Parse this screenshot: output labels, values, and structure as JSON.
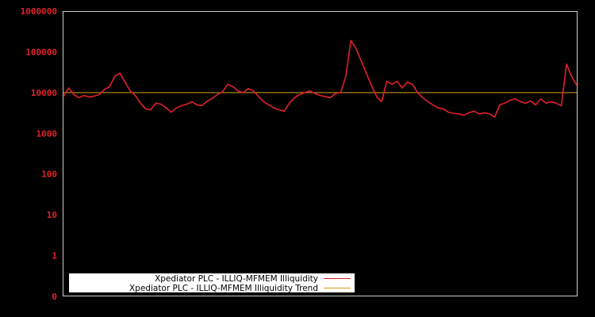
{
  "chart_data": {
    "type": "line",
    "title": "",
    "xlabel": "",
    "ylabel": "",
    "yscale": "log",
    "y_ticks": [
      "1000000",
      "100000",
      "10000",
      "1000",
      "100",
      "10",
      "1",
      "0"
    ],
    "ylim": [
      0,
      1000000
    ],
    "grid": false,
    "legend_position": "bottom-left",
    "series": [
      {
        "name": "Xpediator PLC - ILLIQ-MFMEM Illiquidity",
        "color": "#e0202c",
        "x": [
          0,
          1,
          2,
          3,
          4,
          5,
          6,
          7,
          8,
          9,
          10,
          11,
          12,
          13,
          14,
          15,
          16,
          17,
          18,
          19,
          20,
          21,
          22,
          23,
          24,
          25,
          26,
          27,
          28,
          29,
          30,
          31,
          32,
          33,
          34,
          35,
          36,
          37,
          38,
          39,
          40,
          41,
          42,
          43,
          44,
          45,
          46,
          47,
          48,
          49,
          50,
          51,
          52,
          53,
          54,
          55,
          56,
          57,
          58,
          59,
          60,
          61,
          62,
          63,
          64,
          65,
          66,
          67,
          68,
          69,
          70,
          71,
          72,
          73,
          74,
          75,
          76,
          77,
          78,
          79,
          80,
          81,
          82,
          83,
          84,
          85,
          86,
          87,
          88,
          89,
          90,
          91,
          92,
          93,
          94,
          95,
          96,
          97,
          98,
          99,
          100
        ],
        "values": [
          8000,
          13000,
          9000,
          7500,
          8500,
          7800,
          8200,
          9000,
          12000,
          14000,
          25000,
          30000,
          18000,
          11000,
          8500,
          5500,
          4000,
          3800,
          5500,
          5200,
          4200,
          3300,
          4200,
          4800,
          5200,
          6000,
          5000,
          4800,
          6200,
          7200,
          9000,
          10500,
          16000,
          14000,
          11000,
          10000,
          12500,
          11000,
          8000,
          6000,
          5000,
          4200,
          3800,
          3500,
          5500,
          7500,
          9000,
          10000,
          11000,
          9500,
          8500,
          8000,
          7500,
          9500,
          10000,
          25000,
          190000,
          120000,
          60000,
          30000,
          15000,
          8000,
          6000,
          19000,
          16000,
          19000,
          13000,
          18000,
          16000,
          10000,
          7500,
          6000,
          5000,
          4200,
          4000,
          3300,
          3100,
          3000,
          2800,
          3200,
          3500,
          3000,
          3200,
          3000,
          2500,
          5000,
          5500,
          6500,
          7000,
          6000,
          5500,
          6200,
          5000,
          7000,
          5500,
          6000,
          5500,
          4800,
          50000,
          25000,
          15000
        ]
      },
      {
        "name": "Xpediator PLC - ILLIQ-MFMEM Illiquidity Trend",
        "color": "#d4a017",
        "x": [
          0,
          100
        ],
        "values": [
          10000,
          10000
        ]
      }
    ]
  },
  "legend": {
    "items": [
      {
        "label": "Xpediator PLC - ILLIQ-MFMEM Illiquidity",
        "color": "#e0202c"
      },
      {
        "label": "Xpediator PLC - ILLIQ-MFMEM Illiquidity Trend",
        "color": "#d4a017"
      }
    ]
  }
}
